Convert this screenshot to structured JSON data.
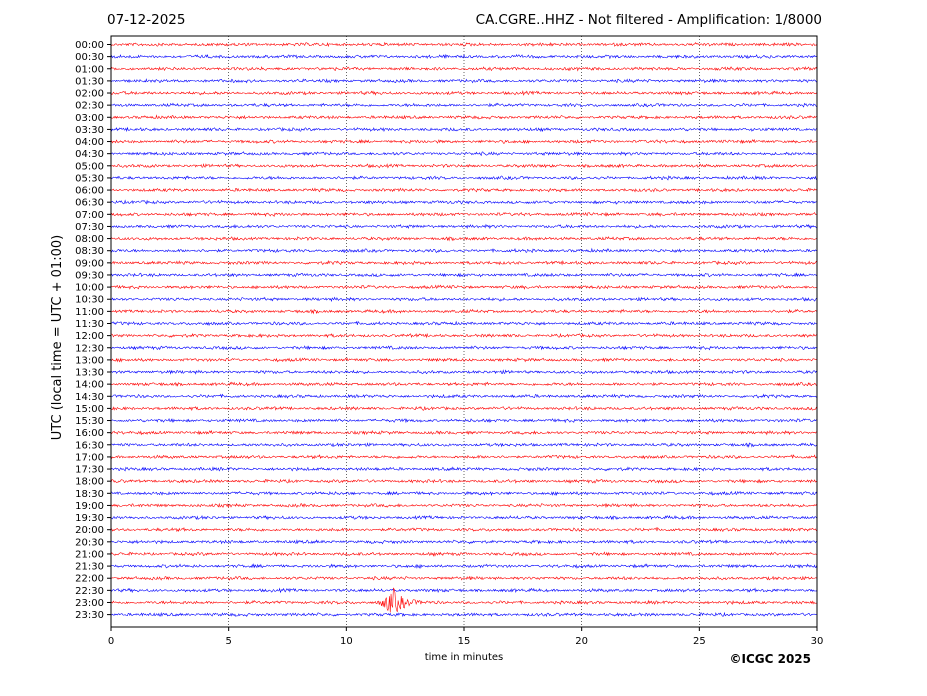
{
  "header": {
    "date": "07-12-2025",
    "title": "CA.CGRE..HHZ - Not filtered - Amplification: 1/8000"
  },
  "footer": {
    "copyright": "©ICGC 2025"
  },
  "colors": {
    "trace_a": "#ff0000",
    "trace_b": "#0000ff",
    "grid": "#000000"
  },
  "chart_data": {
    "type": "line",
    "xlabel": "time in minutes",
    "ylabel": "UTC (local time = UTC + 01:00)",
    "xlim": [
      0,
      30
    ],
    "x_ticks": [
      "0",
      "5",
      "10",
      "15",
      "20",
      "25",
      "30"
    ],
    "grid": "vertical dotted lines at x = 5, 10, 15, 20, 25",
    "trace_color_pattern": [
      "red",
      "blue"
    ],
    "rows": [
      "00:00",
      "00:30",
      "01:00",
      "01:30",
      "02:00",
      "02:30",
      "03:00",
      "03:30",
      "04:00",
      "04:30",
      "05:00",
      "05:30",
      "06:00",
      "06:30",
      "07:00",
      "07:30",
      "08:00",
      "08:30",
      "09:00",
      "09:30",
      "10:00",
      "10:30",
      "11:00",
      "11:30",
      "12:00",
      "12:30",
      "13:00",
      "13:30",
      "14:00",
      "14:30",
      "15:00",
      "15:30",
      "16:00",
      "16:30",
      "17:00",
      "17:30",
      "18:00",
      "18:30",
      "19:00",
      "19:30",
      "20:00",
      "20:30",
      "21:00",
      "21:30",
      "22:00",
      "22:30",
      "23:00",
      "23:30"
    ],
    "events": [
      {
        "row": "23:00",
        "start_min": 11.2,
        "peak_min": 12.0,
        "end_min": 14.0,
        "note": "large amplitude burst"
      }
    ]
  }
}
